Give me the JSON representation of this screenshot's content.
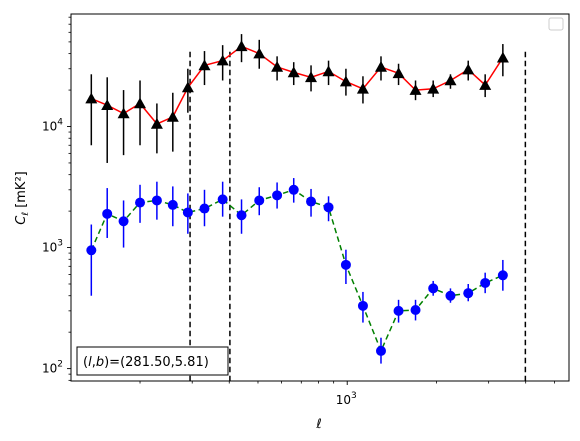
{
  "chart_data": {
    "type": "scatter",
    "xlabel": "ℓ",
    "ylabel": "C_ℓ  [mK²]",
    "xscale": "log",
    "yscale": "log",
    "xlim": [
      117,
      5600
    ],
    "ylim": [
      79,
      85000
    ],
    "x_tick_labels": [
      {
        "value": 1000,
        "base": "10",
        "exp": "3"
      }
    ],
    "y_tick_labels": [
      {
        "value": 100,
        "base": "10",
        "exp": "2"
      },
      {
        "value": 1000,
        "base": "10",
        "exp": "3"
      },
      {
        "value": 10000,
        "base": "10",
        "exp": "4"
      }
    ],
    "grid": false,
    "legend": "top-right, empty",
    "annotation": "(l,b)=(281.50,5.81)",
    "vlines": [
      295,
      402,
      3990
    ],
    "series": [
      {
        "marker": "triangle",
        "line_color": "#ff0000",
        "line_style": "solid",
        "marker_color": "#000000",
        "errorbar_color": "#000000",
        "points": [
          {
            "x": 137,
            "y": 17000,
            "lo": 7000,
            "hi": 27000
          },
          {
            "x": 155,
            "y": 15000,
            "lo": 5000,
            "hi": 25500
          },
          {
            "x": 176,
            "y": 12800,
            "lo": 5800,
            "hi": 20000
          },
          {
            "x": 200,
            "y": 15500,
            "lo": 7000,
            "hi": 24000
          },
          {
            "x": 228,
            "y": 10500,
            "lo": 6000,
            "hi": 15500
          },
          {
            "x": 258,
            "y": 12000,
            "lo": 6200,
            "hi": 19000
          },
          {
            "x": 290,
            "y": 21000,
            "lo": 13000,
            "hi": 30000
          },
          {
            "x": 330,
            "y": 32000,
            "lo": 22000,
            "hi": 42000
          },
          {
            "x": 380,
            "y": 35000,
            "lo": 24000,
            "hi": 47000
          },
          {
            "x": 440,
            "y": 46000,
            "lo": 34000,
            "hi": 58000
          },
          {
            "x": 505,
            "y": 40000,
            "lo": 30000,
            "hi": 52000
          },
          {
            "x": 580,
            "y": 31000,
            "lo": 24000,
            "hi": 38000
          },
          {
            "x": 660,
            "y": 28000,
            "lo": 22000,
            "hi": 34000
          },
          {
            "x": 755,
            "y": 25500,
            "lo": 19500,
            "hi": 32000
          },
          {
            "x": 865,
            "y": 28500,
            "lo": 22000,
            "hi": 35000
          },
          {
            "x": 990,
            "y": 23500,
            "lo": 18000,
            "hi": 30000
          },
          {
            "x": 1130,
            "y": 20500,
            "lo": 15500,
            "hi": 26000
          },
          {
            "x": 1300,
            "y": 31000,
            "lo": 24000,
            "hi": 38000
          },
          {
            "x": 1490,
            "y": 27500,
            "lo": 22000,
            "hi": 33000
          },
          {
            "x": 1700,
            "y": 20000,
            "lo": 16500,
            "hi": 24000
          },
          {
            "x": 1950,
            "y": 20500,
            "lo": 17500,
            "hi": 24000
          },
          {
            "x": 2230,
            "y": 24000,
            "lo": 20500,
            "hi": 27000
          },
          {
            "x": 2560,
            "y": 29500,
            "lo": 24000,
            "hi": 35000
          },
          {
            "x": 2920,
            "y": 22000,
            "lo": 17500,
            "hi": 27000
          },
          {
            "x": 3350,
            "y": 37000,
            "lo": 26000,
            "hi": 48000
          }
        ]
      },
      {
        "marker": "circle",
        "line_color": "#008000",
        "line_style": "dashed",
        "marker_color": "#0000ff",
        "errorbar_color": "#0000ff",
        "points": [
          {
            "x": 137,
            "y": 950,
            "lo": 400,
            "hi": 1550
          },
          {
            "x": 155,
            "y": 1900,
            "lo": 1200,
            "hi": 3100
          },
          {
            "x": 176,
            "y": 1650,
            "lo": 1000,
            "hi": 2450
          },
          {
            "x": 200,
            "y": 2350,
            "lo": 1600,
            "hi": 3300
          },
          {
            "x": 228,
            "y": 2450,
            "lo": 1700,
            "hi": 3500
          },
          {
            "x": 258,
            "y": 2250,
            "lo": 1500,
            "hi": 3200
          },
          {
            "x": 290,
            "y": 1950,
            "lo": 1300,
            "hi": 2800
          },
          {
            "x": 330,
            "y": 2100,
            "lo": 1500,
            "hi": 3000
          },
          {
            "x": 380,
            "y": 2500,
            "lo": 1800,
            "hi": 3500
          },
          {
            "x": 440,
            "y": 1850,
            "lo": 1300,
            "hi": 2500
          },
          {
            "x": 505,
            "y": 2450,
            "lo": 1850,
            "hi": 3150
          },
          {
            "x": 580,
            "y": 2700,
            "lo": 2100,
            "hi": 3450
          },
          {
            "x": 660,
            "y": 3000,
            "lo": 2350,
            "hi": 3750
          },
          {
            "x": 755,
            "y": 2400,
            "lo": 1800,
            "hi": 3050
          },
          {
            "x": 865,
            "y": 2150,
            "lo": 1650,
            "hi": 2650
          },
          {
            "x": 990,
            "y": 720,
            "lo": 500,
            "hi": 960
          },
          {
            "x": 1130,
            "y": 330,
            "lo": 240,
            "hi": 430
          },
          {
            "x": 1300,
            "y": 140,
            "lo": 110,
            "hi": 180
          },
          {
            "x": 1490,
            "y": 300,
            "lo": 240,
            "hi": 370
          },
          {
            "x": 1700,
            "y": 305,
            "lo": 250,
            "hi": 370
          },
          {
            "x": 1950,
            "y": 460,
            "lo": 400,
            "hi": 530
          },
          {
            "x": 2230,
            "y": 400,
            "lo": 350,
            "hi": 460
          },
          {
            "x": 2560,
            "y": 420,
            "lo": 360,
            "hi": 500
          },
          {
            "x": 2920,
            "y": 510,
            "lo": 420,
            "hi": 620
          },
          {
            "x": 3350,
            "y": 590,
            "lo": 440,
            "hi": 790
          }
        ]
      }
    ]
  }
}
